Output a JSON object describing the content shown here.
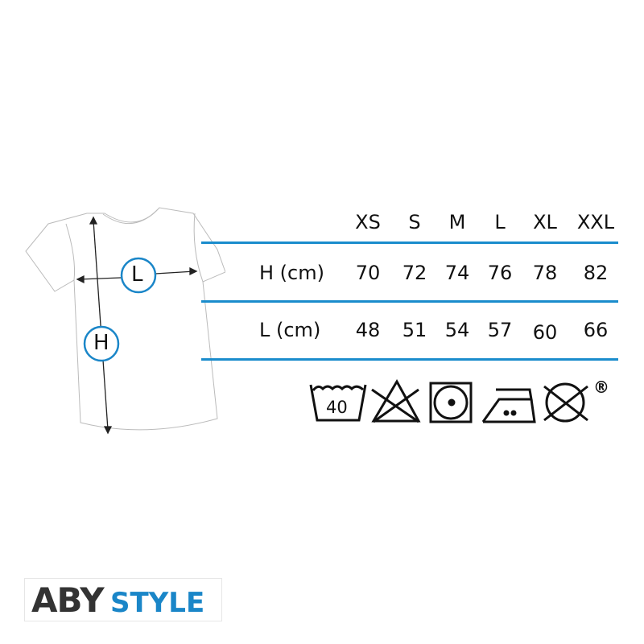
{
  "size_chart": {
    "columns": [
      "XS",
      "S",
      "M",
      "L",
      "XL",
      "XXL"
    ],
    "rows": [
      {
        "label": "H (cm)",
        "values": [
          "70",
          "72",
          "74",
          "76",
          "78",
          "82"
        ]
      },
      {
        "label": "L (cm)",
        "values": [
          "48",
          "51",
          "54",
          "57",
          "60",
          "66"
        ]
      }
    ]
  },
  "diagram": {
    "length_marker": "L",
    "height_marker": "H"
  },
  "care_symbols": {
    "wash_temp": "40",
    "icons": [
      "wash-40-icon",
      "no-bleach-icon",
      "tumble-dry-low-icon",
      "iron-medium-icon",
      "no-dry-clean-icon"
    ],
    "registered": "®"
  },
  "brand": {
    "part1": "ABY",
    "part2": "STYLE",
    "accent": "#1a86c8",
    "dark": "#333333"
  },
  "colors": {
    "lines": "#1a8ccc"
  }
}
